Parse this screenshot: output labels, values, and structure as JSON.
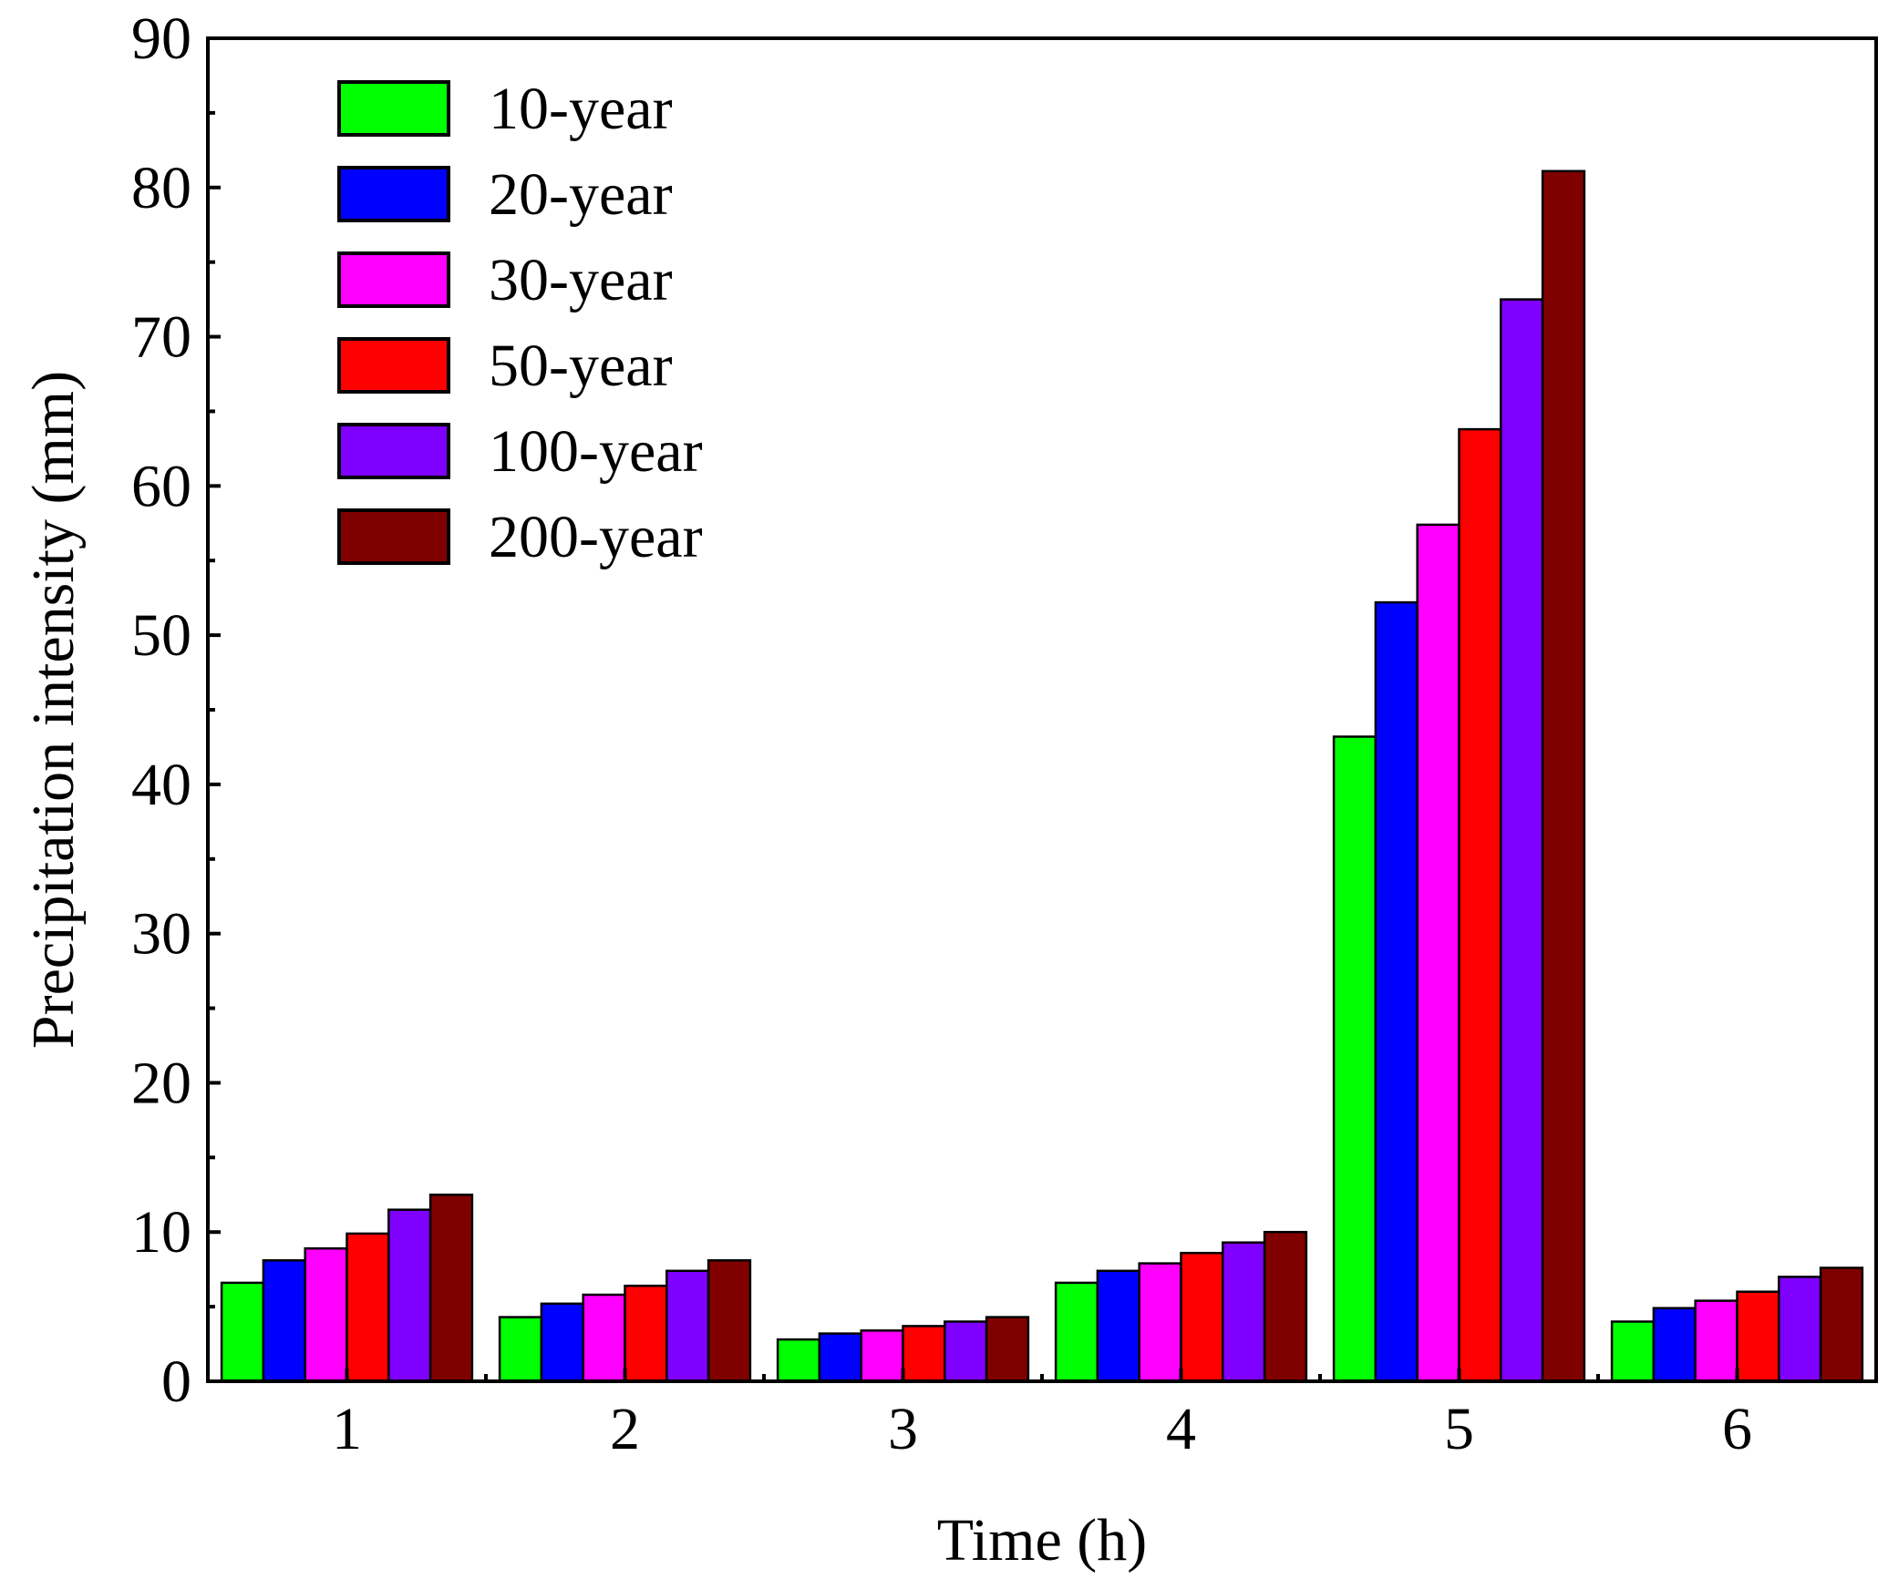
{
  "chart_data": {
    "type": "bar",
    "title": "",
    "xlabel": "Time (h)",
    "ylabel": "Precipitation intensity (mm)",
    "ylim": [
      0,
      90
    ],
    "yticks": [
      "0",
      "10",
      "20",
      "30",
      "40",
      "50",
      "60",
      "70",
      "80",
      "90"
    ],
    "categories": [
      "1",
      "2",
      "3",
      "4",
      "5",
      "6"
    ],
    "legend_position": "top-left",
    "series": [
      {
        "name": "10-year",
        "color": "#00ff00",
        "values": [
          6.6,
          4.3,
          2.8,
          6.6,
          43.2,
          4.0
        ]
      },
      {
        "name": "20-year",
        "color": "#0000ff",
        "values": [
          8.1,
          5.2,
          3.2,
          7.4,
          52.2,
          4.9
        ]
      },
      {
        "name": "30-year",
        "color": "#ff00ff",
        "values": [
          8.9,
          5.8,
          3.4,
          7.9,
          57.4,
          5.4
        ]
      },
      {
        "name": "50-year",
        "color": "#ff0000",
        "values": [
          9.9,
          6.4,
          3.7,
          8.6,
          63.8,
          6.0
        ]
      },
      {
        "name": "100-year",
        "color": "#8000ff",
        "values": [
          11.5,
          7.4,
          4.0,
          9.3,
          72.5,
          7.0
        ]
      },
      {
        "name": "200-year",
        "color": "#800000",
        "values": [
          12.5,
          8.1,
          4.3,
          10.0,
          81.1,
          7.6
        ]
      }
    ]
  }
}
